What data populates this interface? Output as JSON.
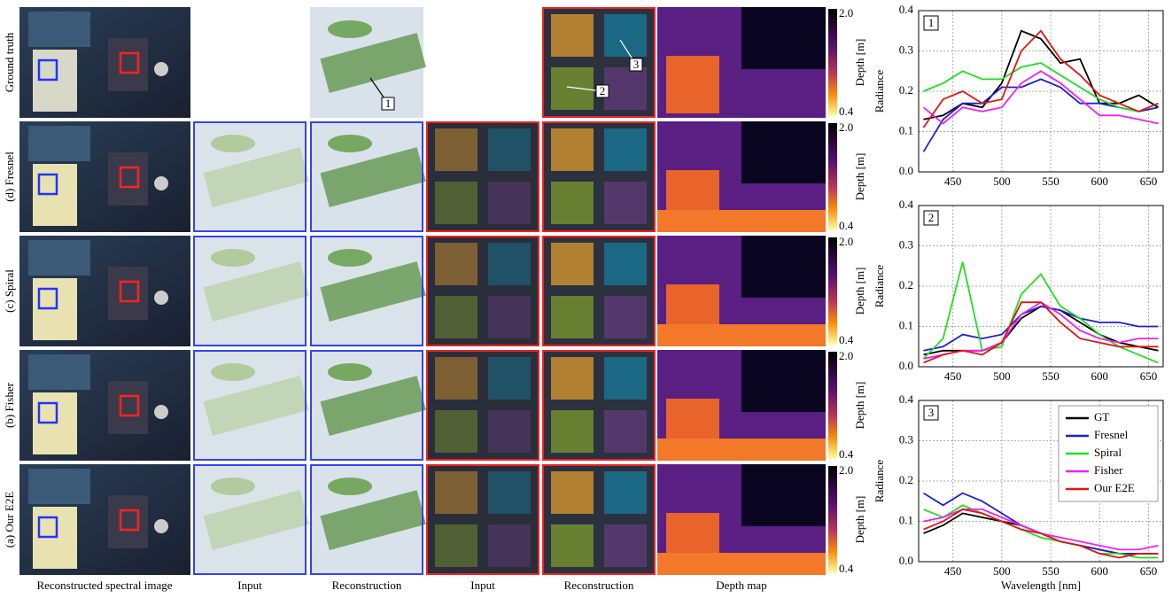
{
  "figure": {
    "row_labels": [
      "Ground truth",
      "(d) Fresnel",
      "(c) Spiral",
      "(b) Fisher",
      "(a) Our E2E"
    ],
    "column_labels": [
      "Reconstructed spectral image",
      "Input",
      "Reconstruction",
      "Input",
      "Reconstruction",
      "Depth map"
    ],
    "callouts": [
      "1",
      "2",
      "3"
    ],
    "colorbar": {
      "label": "Depth [m]",
      "ticks": [
        {
          "value": 2.0,
          "label": "2.0"
        },
        0.4
      ]
    }
  },
  "chart_data": [
    {
      "type": "line",
      "panel_label": "1",
      "ylabel": "Radiance",
      "x": [
        420,
        440,
        460,
        480,
        500,
        520,
        540,
        560,
        580,
        600,
        620,
        640,
        660
      ],
      "xlim": [
        415,
        665
      ],
      "xticks": [
        450,
        500,
        550,
        600,
        650
      ],
      "ylim": [
        0,
        0.4
      ],
      "yticks": [
        {
          "value": 0,
          "label": "0.0"
        },
        0.1,
        0.2,
        0.3,
        0.4
      ],
      "grid": true,
      "series": [
        {
          "name": "GT",
          "color": "#000000",
          "values": [
            0.13,
            0.14,
            0.17,
            0.16,
            0.22,
            0.35,
            0.33,
            0.27,
            0.28,
            0.17,
            0.17,
            0.19,
            0.16
          ]
        },
        {
          "name": "Fresnel",
          "color": "#1f1fd0",
          "values": [
            0.05,
            0.13,
            0.17,
            0.17,
            0.21,
            0.21,
            0.23,
            0.21,
            0.17,
            0.17,
            0.16,
            0.15,
            0.16
          ]
        },
        {
          "name": "Spiral",
          "color": "#22dd22",
          "values": [
            0.2,
            0.22,
            0.25,
            0.23,
            0.23,
            0.26,
            0.27,
            0.24,
            0.21,
            0.18,
            0.16,
            0.15,
            0.17
          ]
        },
        {
          "name": "Fisher",
          "color": "#ee22ee",
          "values": [
            0.16,
            0.12,
            0.16,
            0.15,
            0.16,
            0.22,
            0.25,
            0.22,
            0.18,
            0.14,
            0.14,
            0.13,
            0.12
          ]
        },
        {
          "name": "Our E2E",
          "color": "#e01515",
          "values": [
            0.11,
            0.18,
            0.2,
            0.17,
            0.18,
            0.3,
            0.35,
            0.28,
            0.24,
            0.19,
            0.17,
            0.15,
            0.17
          ]
        }
      ]
    },
    {
      "type": "line",
      "panel_label": "2",
      "ylabel": "Radiance",
      "x": [
        420,
        440,
        460,
        480,
        500,
        520,
        540,
        560,
        580,
        600,
        620,
        640,
        660
      ],
      "xlim": [
        415,
        665
      ],
      "xticks": [
        450,
        500,
        550,
        600,
        650
      ],
      "ylim": [
        0,
        0.4
      ],
      "yticks": [
        {
          "value": 0,
          "label": "0.0"
        },
        0.1,
        0.2,
        0.3,
        0.4
      ],
      "grid": true,
      "series": [
        {
          "name": "GT",
          "color": "#000000",
          "values": [
            0.03,
            0.04,
            0.04,
            0.04,
            0.06,
            0.12,
            0.15,
            0.14,
            0.11,
            0.08,
            0.06,
            0.05,
            0.04
          ]
        },
        {
          "name": "Fresnel",
          "color": "#1f1fd0",
          "values": [
            0.04,
            0.05,
            0.08,
            0.07,
            0.08,
            0.13,
            0.15,
            0.14,
            0.12,
            0.11,
            0.11,
            0.1,
            0.1
          ]
        },
        {
          "name": "Spiral",
          "color": "#22dd22",
          "values": [
            0.02,
            0.07,
            0.26,
            0.04,
            0.05,
            0.18,
            0.23,
            0.15,
            0.12,
            0.08,
            0.05,
            0.03,
            0.01
          ]
        },
        {
          "name": "Fisher",
          "color": "#ee22ee",
          "values": [
            0.02,
            0.03,
            0.04,
            0.04,
            0.06,
            0.13,
            0.16,
            0.13,
            0.09,
            0.07,
            0.06,
            0.07,
            0.07
          ]
        },
        {
          "name": "Our E2E",
          "color": "#e01515",
          "values": [
            0.01,
            0.03,
            0.04,
            0.03,
            0.06,
            0.16,
            0.16,
            0.11,
            0.07,
            0.06,
            0.05,
            0.05,
            0.05
          ]
        }
      ]
    },
    {
      "type": "line",
      "panel_label": "3",
      "ylabel": "Radiance",
      "xlabel": "Wavelength [nm]",
      "x": [
        420,
        440,
        460,
        480,
        500,
        520,
        540,
        560,
        580,
        600,
        620,
        640,
        660
      ],
      "xlim": [
        415,
        665
      ],
      "xticks": [
        450,
        500,
        550,
        600,
        650
      ],
      "ylim": [
        0,
        0.4
      ],
      "yticks": [
        {
          "value": 0,
          "label": "0.0"
        },
        0.1,
        0.2,
        0.3,
        0.4
      ],
      "grid": true,
      "legend": "upper right",
      "series": [
        {
          "name": "GT",
          "color": "#000000",
          "values": [
            0.07,
            0.09,
            0.12,
            0.11,
            0.1,
            0.09,
            0.07,
            0.05,
            0.04,
            0.03,
            0.02,
            0.02,
            0.02
          ]
        },
        {
          "name": "Fresnel",
          "color": "#1f1fd0",
          "values": [
            0.17,
            0.14,
            0.17,
            0.15,
            0.12,
            0.09,
            0.07,
            0.05,
            0.04,
            0.03,
            0.02,
            0.02,
            0.02
          ]
        },
        {
          "name": "Spiral",
          "color": "#22dd22",
          "values": [
            0.13,
            0.11,
            0.14,
            0.12,
            0.1,
            0.08,
            0.06,
            0.05,
            0.04,
            0.02,
            0.02,
            0.01,
            0.01
          ]
        },
        {
          "name": "Fisher",
          "color": "#ee22ee",
          "values": [
            0.1,
            0.11,
            0.13,
            0.13,
            0.11,
            0.09,
            0.07,
            0.06,
            0.05,
            0.04,
            0.03,
            0.03,
            0.04
          ]
        },
        {
          "name": "Our E2E",
          "color": "#e01515",
          "values": [
            0.08,
            0.1,
            0.13,
            0.12,
            0.1,
            0.08,
            0.07,
            0.05,
            0.04,
            0.02,
            0.01,
            0.02,
            0.02
          ]
        }
      ]
    }
  ]
}
